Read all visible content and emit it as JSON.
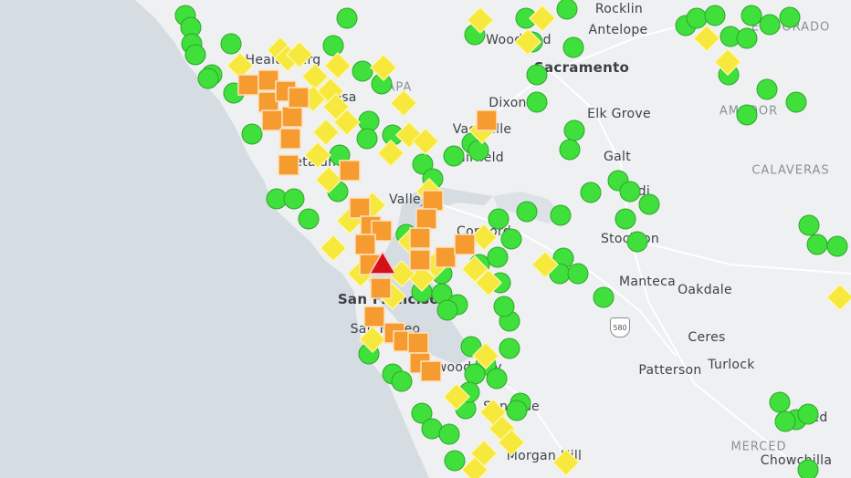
{
  "map": {
    "colors": {
      "water": "#d5dce2",
      "land": "#eef0f2",
      "road": "#ffffff"
    },
    "legend_colors": {
      "good": "#3fe03b",
      "moderate": "#f7e83e",
      "unhealthy_sensitive": "#f59b30",
      "unhealthy": "#d4111a"
    },
    "places": [
      {
        "name": "Rocklin",
        "kind": "city"
      },
      {
        "name": "Antelope",
        "kind": "city"
      },
      {
        "name": "Sacramento",
        "kind": "major"
      },
      {
        "name": "Woodland",
        "kind": "city"
      },
      {
        "name": "Dixon",
        "kind": "city"
      },
      {
        "name": "Vacaville",
        "kind": "city"
      },
      {
        "name": "Fairfield",
        "kind": "city"
      },
      {
        "name": "Elk Grove",
        "kind": "city"
      },
      {
        "name": "Galt",
        "kind": "city"
      },
      {
        "name": "Lodi",
        "kind": "city"
      },
      {
        "name": "Stockton",
        "kind": "city"
      },
      {
        "name": "Manteca",
        "kind": "city"
      },
      {
        "name": "Oakdale",
        "kind": "city"
      },
      {
        "name": "Ceres",
        "kind": "city"
      },
      {
        "name": "Turlock",
        "kind": "city"
      },
      {
        "name": "Patterson",
        "kind": "city"
      },
      {
        "name": "Merced",
        "kind": "city"
      },
      {
        "name": "Chowchilla",
        "kind": "city"
      },
      {
        "name": "MERCED",
        "kind": "county"
      },
      {
        "name": "CALAVERAS",
        "kind": "county"
      },
      {
        "name": "AMADOR",
        "kind": "county"
      },
      {
        "name": "EL DORADO",
        "kind": "county"
      },
      {
        "name": "NAPA",
        "kind": "county"
      },
      {
        "name": "Healdsburg",
        "kind": "city"
      },
      {
        "name": "Santa Rosa",
        "kind": "city"
      },
      {
        "name": "Petaluma",
        "kind": "city"
      },
      {
        "name": "Vallejo",
        "kind": "city"
      },
      {
        "name": "Concord",
        "kind": "city"
      },
      {
        "name": "San Francisco",
        "kind": "major"
      },
      {
        "name": "San Mateo",
        "kind": "city"
      },
      {
        "name": "Redwood City",
        "kind": "city"
      },
      {
        "name": "San Jose",
        "kind": "city"
      },
      {
        "name": "Morgan Hill",
        "kind": "city"
      }
    ],
    "highway_shield": "580"
  }
}
